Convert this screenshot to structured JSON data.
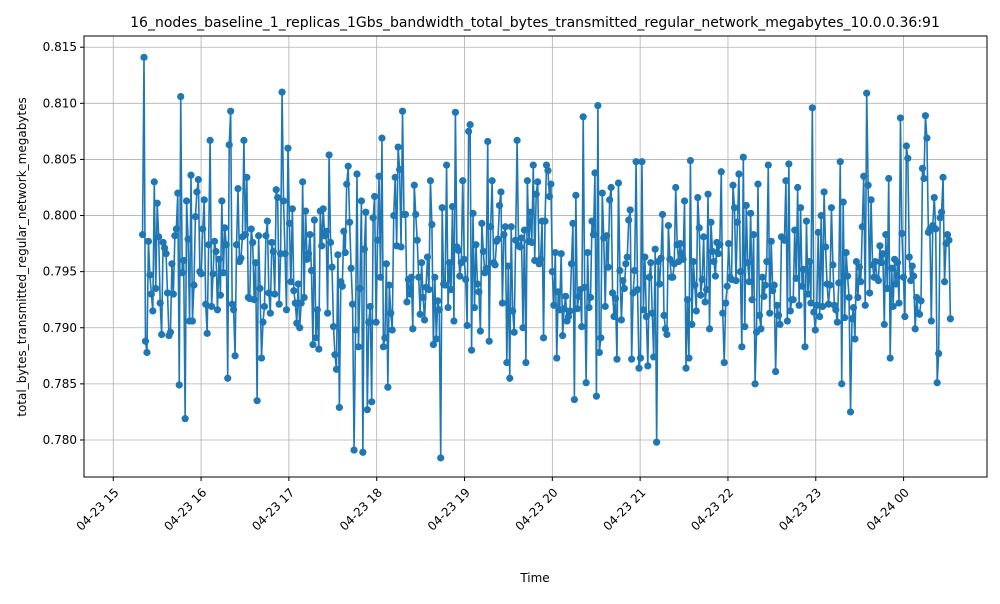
{
  "chart_data": {
    "type": "line",
    "title": "16_nodes_baseline_1_replicas_1Gbs_bandwidth_total_bytes_transmitted_regular_network_megabytes_10.0.0.36:91",
    "xlabel": "Time",
    "ylabel": "total_bytes_transmitted_regular_network_megabytes",
    "x_tick_labels": [
      "04-23 15",
      "04-23 16",
      "04-23 17",
      "04-23 18",
      "04-23 19",
      "04-23 20",
      "04-23 21",
      "04-23 22",
      "04-23 23",
      "04-24 00"
    ],
    "y_tick_labels": [
      "0.780",
      "0.785",
      "0.790",
      "0.795",
      "0.800",
      "0.805",
      "0.810",
      "0.815"
    ],
    "y_ticks": [
      0.78,
      0.785,
      0.79,
      0.795,
      0.8,
      0.805,
      0.81,
      0.815
    ],
    "ylim": [
      0.7767,
      0.816
    ],
    "xlim": [
      "2024-04-23 14:40",
      "2024-04-24 00:57"
    ],
    "x_start": "2024-04-23 15:20",
    "x_end": "2024-04-24 00:32",
    "grid": true,
    "marker": "circle",
    "color": "#1f77b4",
    "series": [
      {
        "name": "",
        "values": [
          0.7983,
          0.8141,
          0.7888,
          0.7878,
          0.7977,
          0.7947,
          0.793,
          0.7915,
          0.803,
          0.7935,
          0.8011,
          0.7981,
          0.7922,
          0.7894,
          0.7976,
          0.7971,
          0.7966,
          0.7931,
          0.7893,
          0.7896,
          0.7957,
          0.793,
          0.7982,
          0.7988,
          0.802,
          0.7849,
          0.8106,
          0.7949,
          0.796,
          0.7819,
          0.8013,
          0.7979,
          0.7906,
          0.8036,
          0.7906,
          0.7938,
          0.7999,
          0.8021,
          0.8032,
          0.795,
          0.7948,
          0.7988,
          0.8014,
          0.7921,
          0.7895,
          0.7974,
          0.8067,
          0.7919,
          0.7948,
          0.7977,
          0.7968,
          0.7916,
          0.7961,
          0.7929,
          0.8013,
          0.7949,
          0.7989,
          0.7974,
          0.7855,
          0.8063,
          0.8093,
          0.7921,
          0.7916,
          0.7875,
          0.7974,
          0.8024,
          0.7959,
          0.7962,
          0.7981,
          0.8067,
          0.7983,
          0.8034,
          0.7927,
          0.7926,
          0.7988,
          0.7976,
          0.7925,
          0.7958,
          0.7835,
          0.7982,
          0.7935,
          0.7873,
          0.7905,
          0.7919,
          0.7982,
          0.7995,
          0.7931,
          0.7913,
          0.7976,
          0.7968,
          0.793,
          0.8023,
          0.8016,
          0.7921,
          0.7966,
          0.811,
          0.8013,
          0.7966,
          0.7916,
          0.806,
          0.7993,
          0.7941,
          0.8006,
          0.7933,
          0.7922,
          0.7904,
          0.7939,
          0.79,
          0.7922,
          0.803,
          0.7927,
          0.8004,
          0.7961,
          0.7966,
          0.7983,
          0.7951,
          0.7885,
          0.7996,
          0.7891,
          0.7916,
          0.7881,
          0.8004,
          0.7973,
          0.8006,
          0.7982,
          0.7986,
          0.7913,
          0.8054,
          0.7976,
          0.7954,
          0.7901,
          0.7876,
          0.7863,
          0.7965,
          0.7829,
          0.7941,
          0.7937,
          0.7986,
          0.7967,
          0.8028,
          0.8044,
          0.7994,
          0.7953,
          0.7921,
          0.7791,
          0.7898,
          0.8037,
          0.7883,
          0.7935,
          0.8013,
          0.7789,
          0.797,
          0.8003,
          0.7827,
          0.7905,
          0.7919,
          0.7834,
          0.7998,
          0.8017,
          0.7905,
          0.7978,
          0.8035,
          0.7945,
          0.8069,
          0.7883,
          0.7891,
          0.7957,
          0.7847,
          0.7938,
          0.7913,
          0.7898,
          0.8,
          0.8034,
          0.7973,
          0.8061,
          0.8041,
          0.7972,
          0.8093,
          0.8001,
          0.8001,
          0.7923,
          0.7943,
          0.793,
          0.7945,
          0.7899,
          0.8027,
          0.8001,
          0.7978,
          0.7945,
          0.7912,
          0.7958,
          0.7927,
          0.7907,
          0.7936,
          0.7963,
          0.7934,
          0.8031,
          0.7992,
          0.7885,
          0.7945,
          0.789,
          0.7924,
          0.7916,
          0.7784,
          0.8007,
          0.7939,
          0.7938,
          0.8045,
          0.7918,
          0.7958,
          0.7934,
          0.8008,
          0.7906,
          0.8092,
          0.7972,
          0.7969,
          0.7946,
          0.7958,
          0.8031,
          0.7961,
          0.7943,
          0.7902,
          0.8075,
          0.8081,
          0.788,
          0.8002,
          0.7918,
          0.7974,
          0.7939,
          0.7932,
          0.7897,
          0.7993,
          0.7968,
          0.7949,
          0.7953,
          0.8066,
          0.7888,
          0.799,
          0.8031,
          0.7958,
          0.7956,
          0.7977,
          0.7979,
          0.8009,
          0.8021,
          0.7922,
          0.7983,
          0.799,
          0.7869,
          0.7955,
          0.7855,
          0.799,
          0.7915,
          0.7896,
          0.7978,
          0.8067,
          0.7973,
          0.7972,
          0.798,
          0.79,
          0.7987,
          0.7869,
          0.8031,
          0.7977,
          0.8003,
          0.7976,
          0.8045,
          0.796,
          0.8019,
          0.803,
          0.7957,
          0.7961,
          0.7995,
          0.7891,
          0.7995,
          0.8045,
          0.804,
          0.8017,
          0.8028,
          0.795,
          0.792,
          0.7967,
          0.7873,
          0.7932,
          0.7916,
          0.7966,
          0.7893,
          0.7917,
          0.7928,
          0.7906,
          0.791,
          0.7915,
          0.7957,
          0.7993,
          0.7836,
          0.8018,
          0.7917,
          0.7928,
          0.7934,
          0.7901,
          0.8088,
          0.7936,
          0.7851,
          0.7967,
          0.7918,
          0.7927,
          0.7995,
          0.7983,
          0.8038,
          0.7839,
          0.8098,
          0.7878,
          0.7891,
          0.802,
          0.798,
          0.7919,
          0.7982,
          0.7954,
          0.8014,
          0.8025,
          0.7931,
          0.791,
          0.7926,
          0.7872,
          0.8029,
          0.7951,
          0.7907,
          0.7942,
          0.7935,
          0.7957,
          0.7963,
          0.7996,
          0.8005,
          0.7872,
          0.7931,
          0.7951,
          0.8048,
          0.7934,
          0.7864,
          0.7873,
          0.8048,
          0.7916,
          0.7963,
          0.791,
          0.7866,
          0.7945,
          0.7958,
          0.7913,
          0.7874,
          0.797,
          0.7798,
          0.7959,
          0.7939,
          0.7962,
          0.8001,
          0.7911,
          0.7899,
          0.7894,
          0.7991,
          0.7961,
          0.7945,
          0.7945,
          0.7957,
          0.8025,
          0.7974,
          0.7959,
          0.7975,
          0.7966,
          0.7961,
          0.8013,
          0.7864,
          0.7925,
          0.7873,
          0.8049,
          0.7903,
          0.7959,
          0.7938,
          0.7915,
          0.8016,
          0.7989,
          0.7929,
          0.7943,
          0.7981,
          0.7923,
          0.7934,
          0.8019,
          0.7899,
          0.7994,
          0.7968,
          0.7959,
          0.7946,
          0.7976,
          0.7966,
          0.7974,
          0.8039,
          0.7913,
          0.7869,
          0.7922,
          0.7937,
          0.7975,
          0.7945,
          0.7943,
          0.8027,
          0.8007,
          0.7942,
          0.7994,
          0.8037,
          0.795,
          0.7883,
          0.8052,
          0.7901,
          0.8009,
          0.7958,
          0.7941,
          0.8002,
          0.7925,
          0.7983,
          0.785,
          0.7896,
          0.8028,
          0.7911,
          0.7899,
          0.7945,
          0.7928,
          0.7938,
          0.7959,
          0.8045,
          0.7913,
          0.7977,
          0.7933,
          0.7938,
          0.7861,
          0.792,
          0.7911,
          0.7903,
          0.7981,
          0.798,
          0.7978,
          0.8031,
          0.7906,
          0.8046,
          0.7915,
          0.7925,
          0.7925,
          0.7987,
          0.7944,
          0.8025,
          0.792,
          0.8007,
          0.7937,
          0.7952,
          0.7883,
          0.7995,
          0.793,
          0.7959,
          0.7922,
          0.8096,
          0.7914,
          0.7898,
          0.792,
          0.7985,
          0.791,
          0.8,
          0.7919,
          0.8021,
          0.7972,
          0.7939,
          0.7921,
          0.7938,
          0.8007,
          0.7956,
          0.792,
          0.7916,
          0.7905,
          0.794,
          0.8048,
          0.785,
          0.8012,
          0.7909,
          0.7967,
          0.7946,
          0.7927,
          0.7825,
          0.7908,
          0.7918,
          0.789,
          0.7959,
          0.7927,
          0.7954,
          0.7941,
          0.799,
          0.8035,
          0.792,
          0.8109,
          0.8027,
          0.7931,
          0.8014,
          0.7956,
          0.7945,
          0.7959,
          0.7944,
          0.7942,
          0.7973,
          0.7958,
          0.7966,
          0.7903,
          0.7983,
          0.7935,
          0.8033,
          0.7873,
          0.7953,
          0.7919,
          0.7961,
          0.7939,
          0.7958,
          0.7922,
          0.8087,
          0.7984,
          0.7945,
          0.791,
          0.8062,
          0.8051,
          0.7963,
          0.7942,
          0.7955,
          0.7946,
          0.7899,
          0.7927,
          0.7913,
          0.7912,
          0.7924,
          0.8042,
          0.8033,
          0.8089,
          0.8069,
          0.7985,
          0.7988,
          0.7906,
          0.7991,
          0.8016,
          0.7988,
          0.7851,
          0.7877,
          0.7998,
          0.8003,
          0.8034,
          0.7941,
          0.7975,
          0.7983,
          0.7978,
          0.7908
        ]
      }
    ]
  }
}
